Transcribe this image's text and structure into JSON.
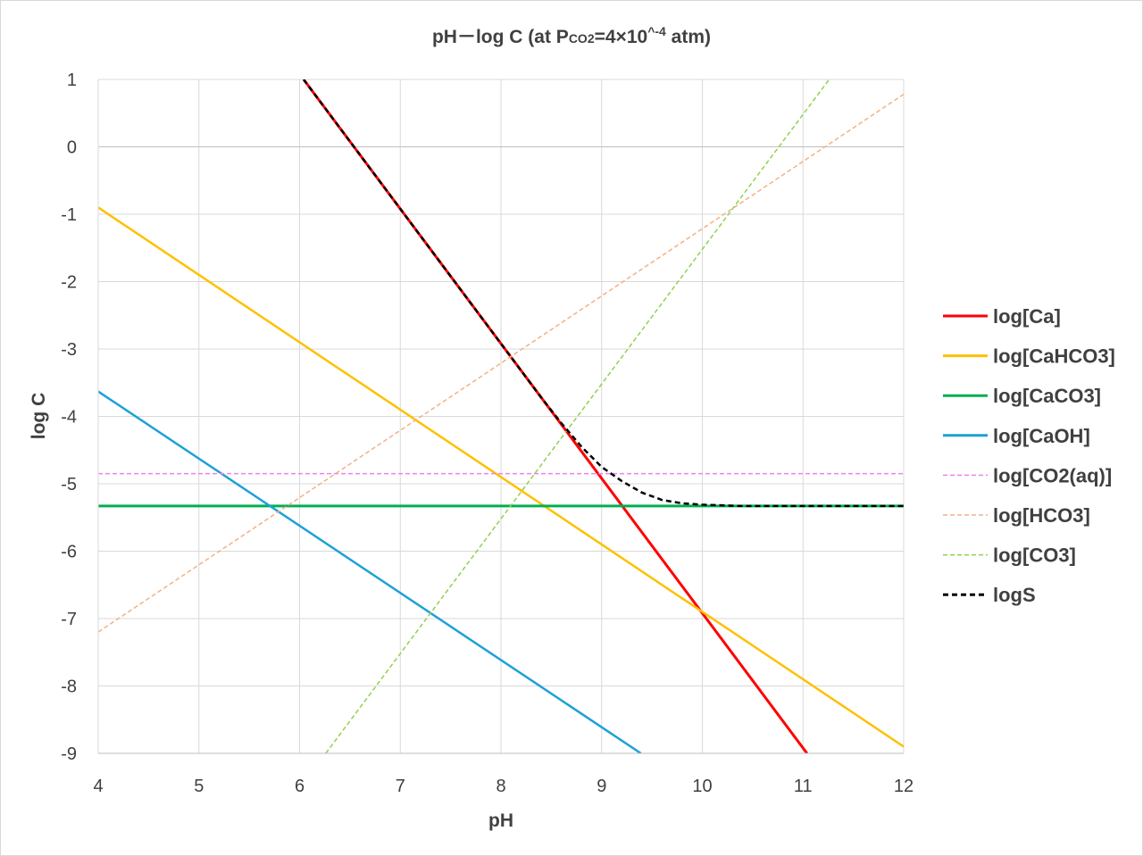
{
  "chart_data": {
    "type": "line",
    "title": "pH－log C (at P",
    "title_sub": "CO2",
    "title_tail": "=4×10",
    "title_sup": "^-4",
    "title_end": " atm)",
    "xlabel": "pH",
    "ylabel": "log C",
    "xlim": [
      4,
      12
    ],
    "ylim": [
      -9,
      1
    ],
    "xticks": [
      "4",
      "5",
      "6",
      "7",
      "8",
      "9",
      "10",
      "11",
      "12"
    ],
    "yticks": [
      "1",
      "0",
      "-1",
      "-2",
      "-3",
      "-4",
      "-5",
      "-6",
      "-7",
      "-8",
      "-9"
    ],
    "grid": true,
    "legend_position": "right",
    "series": [
      {
        "name": "log[Ca]",
        "color": "#ff0000",
        "dash": "solid",
        "width": 3,
        "points": [
          [
            6.04,
            1
          ],
          [
            11.04,
            -9
          ]
        ]
      },
      {
        "name": "log[CaHCO3]",
        "color": "#ffc000",
        "dash": "solid",
        "width": 2.5,
        "points": [
          [
            4,
            -0.9
          ],
          [
            12,
            -8.9
          ]
        ]
      },
      {
        "name": "log[CaCO3]",
        "color": "#00b050",
        "dash": "solid",
        "width": 3,
        "points": [
          [
            4,
            -5.33
          ],
          [
            12,
            -5.33
          ]
        ]
      },
      {
        "name": "log[CaOH]",
        "color": "#1da1d8",
        "dash": "solid",
        "width": 2.5,
        "points": [
          [
            4,
            -3.63
          ],
          [
            9.39,
            -9
          ]
        ]
      },
      {
        "name": "log[CO2(aq)]",
        "color": "#ee82ee",
        "dash": "dashed",
        "width": 1.5,
        "points": [
          [
            4,
            -4.85
          ],
          [
            12,
            -4.85
          ]
        ]
      },
      {
        "name": "log[HCO3]",
        "color": "#f4b183",
        "dash": "dashed",
        "width": 1.5,
        "points": [
          [
            4,
            -7.2
          ],
          [
            12,
            0.78
          ]
        ]
      },
      {
        "name": "log[CO3]",
        "color": "#92d050",
        "dash": "dashed",
        "width": 1.5,
        "points": [
          [
            6.26,
            -9
          ],
          [
            11.26,
            1
          ]
        ]
      },
      {
        "name": "logS",
        "color": "#000000",
        "dash": "dashed",
        "width": 2.5,
        "points": [
          [
            6.04,
            1
          ],
          [
            7,
            -0.92
          ],
          [
            8,
            -2.92
          ],
          [
            8.4,
            -3.72
          ],
          [
            8.6,
            -4.1
          ],
          [
            8.8,
            -4.45
          ],
          [
            9.0,
            -4.75
          ],
          [
            9.2,
            -4.96
          ],
          [
            9.4,
            -5.13
          ],
          [
            9.6,
            -5.24
          ],
          [
            9.8,
            -5.29
          ],
          [
            10.0,
            -5.31
          ],
          [
            10.4,
            -5.33
          ],
          [
            11,
            -5.33
          ],
          [
            12,
            -5.33
          ]
        ]
      }
    ]
  }
}
